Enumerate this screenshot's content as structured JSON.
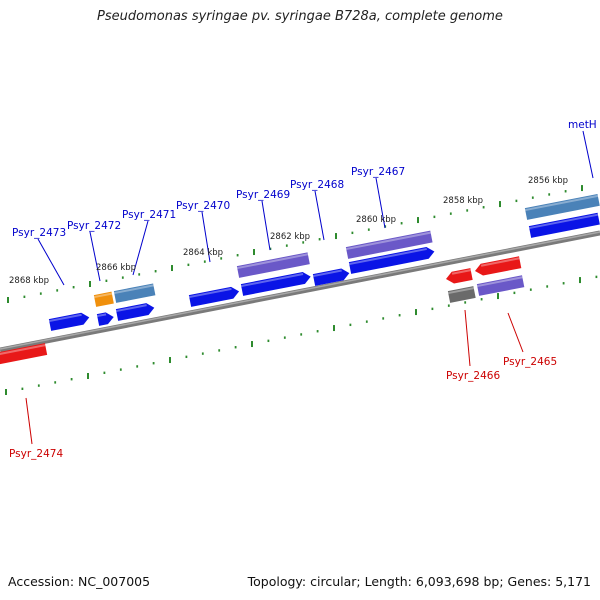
{
  "title": "Pseudomonas syringae pv. syringae B728a, complete genome",
  "accession_label": "Accession: NC_007005",
  "topology_label": "Topology: circular; Length: 6,093,698 bp; Genes: 5,171",
  "colors": {
    "backbone": "#808080",
    "tick": "#2e8b2e",
    "label_forward": "#0000cc",
    "label_reverse": "#cc0000",
    "gene_blue": "#0a14e6",
    "gene_purple": "#6a58c8",
    "gene_steel": "#4a82b8",
    "gene_red": "#e81818",
    "gene_orange": "#f0900c",
    "gene_gray": "#6a6a6a"
  },
  "kbp_labels": [
    "2868 kbp",
    "2866 kbp",
    "2864 kbp",
    "2862 kbp",
    "2860 kbp",
    "2858 kbp",
    "2856 kbp"
  ],
  "forward_genes": [
    "Psyr_2473",
    "Psyr_2472",
    "Psyr_2471",
    "Psyr_2470",
    "Psyr_2469",
    "Psyr_2468",
    "Psyr_2467",
    "metH"
  ],
  "reverse_genes": [
    "Psyr_2474",
    "Psyr_2466",
    "Psyr_2465"
  ]
}
